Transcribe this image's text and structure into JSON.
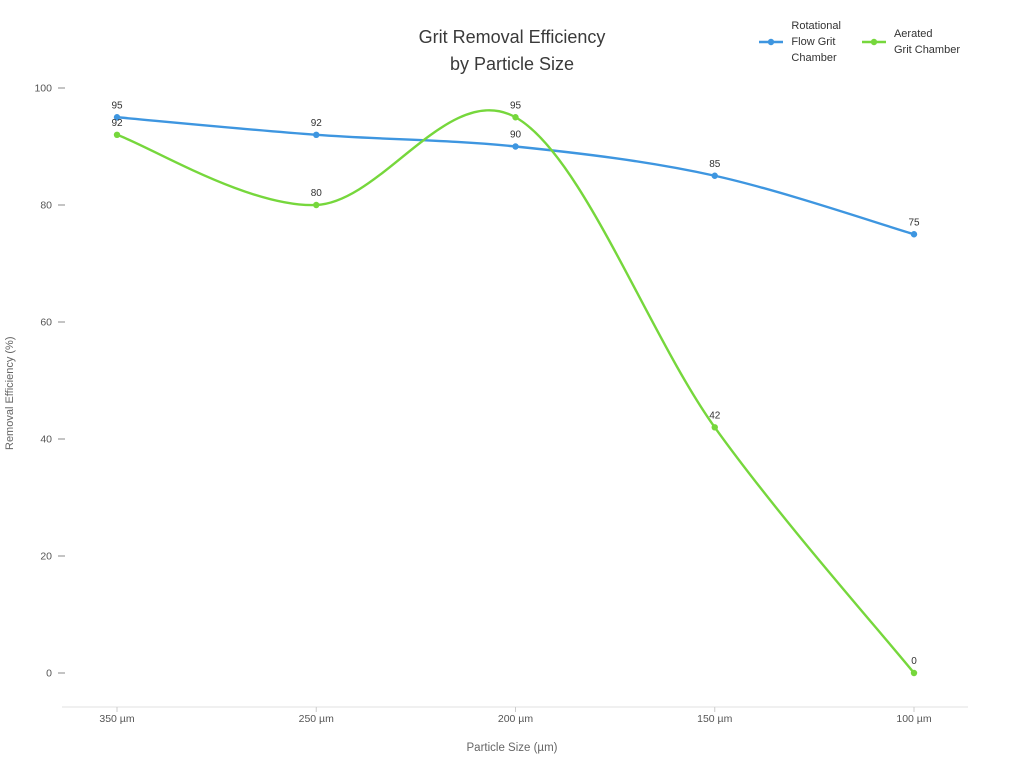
{
  "chart": {
    "title": "Grit Removal Efficiency\nby Particle Size",
    "xlabel": "Particle Size (µm)",
    "ylabel": "Removal Efficiency (%)"
  },
  "legend": {
    "items": [
      {
        "label": "Rotational\nFlow Grit\nChamber",
        "color": "#3e96e0"
      },
      {
        "label": "Aerated\nGrit Chamber",
        "color": "#76d73c"
      }
    ]
  },
  "chart_data": {
    "type": "line",
    "title": "Grit Removal Efficiency by Particle Size",
    "xlabel": "Particle Size (µm)",
    "ylabel": "Removal Efficiency (%)",
    "categories": [
      "350 µm",
      "250 µm",
      "200 µm",
      "150 µm",
      "100 µm"
    ],
    "series": [
      {
        "name": "Rotational Flow Grit Chamber",
        "color": "#3e96e0",
        "values": [
          95,
          92,
          90,
          85,
          75
        ]
      },
      {
        "name": "Aerated Grit Chamber",
        "color": "#76d73c",
        "values": [
          92,
          80,
          95,
          42,
          0
        ]
      }
    ],
    "ylim": [
      0,
      100
    ],
    "yticks": [
      0,
      20,
      40,
      60,
      80,
      100
    ],
    "grid": false,
    "legend_position": "top-right",
    "data_labels": true,
    "smooth": true
  }
}
